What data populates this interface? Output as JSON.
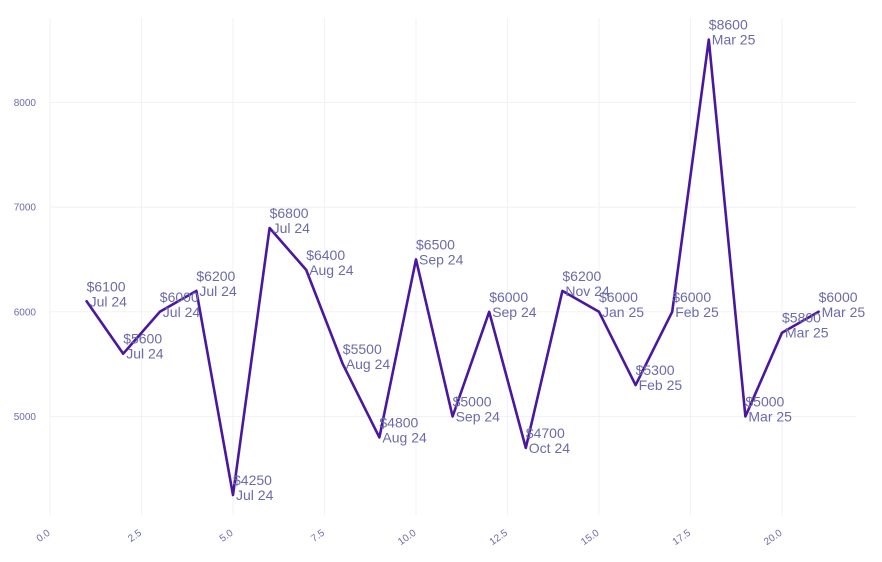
{
  "chart_data": {
    "type": "line",
    "title": "",
    "xlabel": "",
    "ylabel": "",
    "xlim": [
      -0.8,
      22
    ],
    "ylim": [
      4000,
      8750
    ],
    "x_ticks": [
      "0.0",
      "2.5",
      "5.0",
      "7.5",
      "10.0",
      "12.5",
      "15.0",
      "17.5",
      "20.0"
    ],
    "y_ticks": [
      "5000",
      "6000",
      "7000",
      "8000"
    ],
    "grid": true,
    "line_color": "#4a17a0",
    "label_color": "#6b6bab",
    "series": [
      {
        "x": [
          1,
          2,
          3,
          4,
          5,
          6,
          7,
          8,
          9,
          10,
          11,
          12,
          13,
          14,
          15,
          16,
          17,
          18,
          19,
          20,
          21
        ],
        "values": [
          6100,
          5600,
          6000,
          6200,
          4250,
          6800,
          6400,
          5500,
          4800,
          6500,
          5000,
          6000,
          4700,
          6200,
          6000,
          5300,
          6000,
          8600,
          5000,
          5800,
          6000
        ],
        "point_labels": [
          [
            "$6100",
            "Jul 24"
          ],
          [
            "$5600",
            "Jul 24"
          ],
          [
            "$6000",
            "Jul 24"
          ],
          [
            "$6200",
            "Jul 24"
          ],
          [
            "$4250",
            "Jul 24"
          ],
          [
            "$6800",
            "Jul 24"
          ],
          [
            "$6400",
            "Aug 24"
          ],
          [
            "$5500",
            "Aug 24"
          ],
          [
            "$4800",
            "Aug 24"
          ],
          [
            "$6500",
            "Sep 24"
          ],
          [
            "$5000",
            "Sep 24"
          ],
          [
            "$6000",
            "Sep 24"
          ],
          [
            "$4700",
            "Oct 24"
          ],
          [
            "$6200",
            "Nov 24"
          ],
          [
            "$6000",
            "Jan 25"
          ],
          [
            "$5300",
            "Feb 25"
          ],
          [
            "$6000",
            "Feb 25"
          ],
          [
            "$8600",
            "Mar 25"
          ],
          [
            "$5000",
            "Mar 25"
          ],
          [
            "$5800",
            "Mar 25"
          ],
          [
            "$6000",
            "Mar 25"
          ]
        ]
      }
    ]
  }
}
